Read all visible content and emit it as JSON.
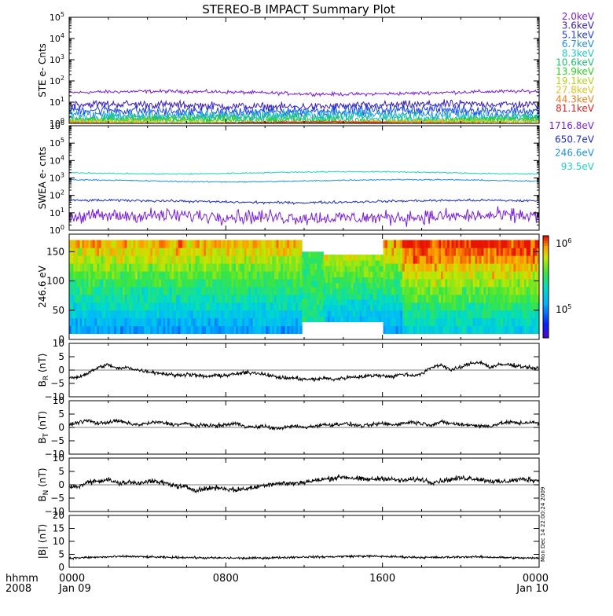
{
  "title": "STEREO-B IMPACT Summary Plot",
  "corner_label": {
    "line1": "hhmm",
    "line2": "2008"
  },
  "time_axis": {
    "ticks": [
      {
        "hours": 0,
        "hhmm": "0000",
        "date": "Jan 09"
      },
      {
        "hours": 8,
        "hhmm": "0800",
        "date": ""
      },
      {
        "hours": 16,
        "hhmm": "1600",
        "date": ""
      },
      {
        "hours": 24,
        "hhmm": "0000",
        "date": "Jan 10"
      }
    ]
  },
  "side_stamp": "Mon Dec 14 22:00:24 2009",
  "panel_ids": [
    "ste",
    "swea",
    "pad",
    "br",
    "bt",
    "bn",
    "bmag"
  ],
  "chart_data": [
    {
      "id": "ste",
      "type": "line",
      "scale": "log",
      "ylabel": "STE e- Cnts",
      "ylim": [
        1,
        100000
      ],
      "y_ticks": [
        {
          "value": 1,
          "base": "10",
          "exp": "0"
        },
        {
          "value": 10,
          "base": "10",
          "exp": "1"
        },
        {
          "value": 100,
          "base": "10",
          "exp": "2"
        },
        {
          "value": 1000,
          "base": "10",
          "exp": "3"
        },
        {
          "value": 10000,
          "base": "10",
          "exp": "4"
        },
        {
          "value": 100000,
          "base": "10",
          "exp": "5"
        }
      ],
      "series": [
        {
          "name": "2.0keV",
          "color": "#7b1fd8",
          "level": 28,
          "noise": 0.07
        },
        {
          "name": "3.6keV",
          "color": "#3a1fb0",
          "level": 7,
          "noise": 0.16
        },
        {
          "name": "5.1keV",
          "color": "#1f3fe0",
          "level": 4,
          "noise": 0.2
        },
        {
          "name": "6.7keV",
          "color": "#1f8fe0",
          "level": 2.6,
          "noise": 0.22
        },
        {
          "name": "8.3keV",
          "color": "#20c8c8",
          "level": 2.0,
          "noise": 0.22
        },
        {
          "name": "10.6keV",
          "color": "#20c070",
          "level": 1.6,
          "noise": 0.2
        },
        {
          "name": "13.9keV",
          "color": "#30d020",
          "level": 1.3,
          "noise": 0.15
        },
        {
          "name": "19.1keV",
          "color": "#b8d020",
          "level": 1.15,
          "noise": 0.1
        },
        {
          "name": "27.8keV",
          "color": "#e8c020",
          "level": 1.08,
          "noise": 0.08
        },
        {
          "name": "44.3keV",
          "color": "#f08020",
          "level": 1.04,
          "noise": 0.05
        },
        {
          "name": "81.1keV",
          "color": "#e02020",
          "level": 1.02,
          "noise": 0.03
        }
      ]
    },
    {
      "id": "swea",
      "type": "line",
      "scale": "log",
      "ylabel": "SWEA e- cnts",
      "ylim": [
        1,
        1000000
      ],
      "y_ticks": [
        {
          "value": 1,
          "base": "10",
          "exp": "0"
        },
        {
          "value": 10,
          "base": "10",
          "exp": "1"
        },
        {
          "value": 100,
          "base": "10",
          "exp": "2"
        },
        {
          "value": 1000,
          "base": "10",
          "exp": "3"
        },
        {
          "value": 10000,
          "base": "10",
          "exp": "4"
        },
        {
          "value": 100000,
          "base": "10",
          "exp": "5"
        },
        {
          "value": 1000000,
          "base": "10",
          "exp": "6"
        }
      ],
      "series": [
        {
          "name": "1716.8eV",
          "color": "#7b1fd8",
          "level": 6,
          "noise": 0.35
        },
        {
          "name": "650.7eV",
          "color": "#1f2fb8",
          "level": 45,
          "noise": 0.06
        },
        {
          "name": "246.6eV",
          "color": "#2090e0",
          "level": 700,
          "noise": 0.03
        },
        {
          "name": "93.5eV",
          "color": "#20d0c8",
          "level": 2000,
          "noise": 0.03
        }
      ]
    },
    {
      "id": "pad",
      "type": "heatmap",
      "ylabel": "246.6 eV",
      "ylim": [
        0,
        180
      ],
      "y_ticks": [
        {
          "value": 0,
          "label": "0"
        },
        {
          "value": 50,
          "label": "50"
        },
        {
          "value": 100,
          "label": "100"
        },
        {
          "value": 150,
          "label": "150"
        }
      ],
      "colorbar": {
        "ticks": [
          {
            "value": 1000000,
            "base": "10",
            "exp": "6"
          },
          {
            "value": 100000,
            "base": "10",
            "exp": "5"
          }
        ]
      },
      "gaps": [
        [
          11.9,
          13.0
        ]
      ],
      "reduced": [
        [
          11.9,
          16.0
        ]
      ]
    },
    {
      "id": "br",
      "type": "line",
      "ylabel": "B",
      "ylabel_sub": "R",
      "ylabel_unit": "(nT)",
      "ylim": [
        -10,
        10
      ],
      "y_ticks": [
        {
          "value": -10,
          "label": "−10"
        },
        {
          "value": -5,
          "label": "−5"
        },
        {
          "value": 0,
          "label": "0"
        },
        {
          "value": 5,
          "label": "5"
        },
        {
          "value": 10,
          "label": "10"
        }
      ],
      "x": [
        0,
        0.5,
        1,
        1.5,
        2,
        2.5,
        3,
        3.5,
        4,
        4.5,
        5,
        5.5,
        6,
        6.5,
        7,
        7.5,
        8,
        8.5,
        9,
        9.5,
        10,
        10.5,
        11,
        11.5,
        12,
        12.5,
        13,
        13.5,
        14,
        14.5,
        15,
        15.5,
        16,
        16.5,
        17,
        17.5,
        18,
        18.5,
        19,
        19.5,
        20,
        20.5,
        21,
        21.5,
        22,
        22.5,
        23,
        23.5,
        24
      ],
      "values": [
        -3,
        -2.5,
        -1,
        1,
        2,
        0.5,
        1,
        0,
        -0.5,
        -1,
        -1.5,
        -2,
        -1.5,
        -2,
        -2.5,
        -2,
        -2,
        -1.5,
        -1,
        -1,
        -1.5,
        -2.5,
        -3,
        -3,
        -3.5,
        -3.5,
        -3,
        -3.5,
        -3,
        -2.5,
        -2.5,
        -2,
        -2,
        -2.5,
        -1.5,
        -2,
        -1.5,
        1,
        2,
        0,
        1,
        2.5,
        3,
        1,
        2,
        2,
        1.5,
        1,
        0.5
      ],
      "noise": 0.6
    },
    {
      "id": "bt",
      "type": "line",
      "ylabel": "B",
      "ylabel_sub": "T",
      "ylabel_unit": "(nT)",
      "ylim": [
        -10,
        10
      ],
      "y_ticks": [
        {
          "value": -10,
          "label": "−10"
        },
        {
          "value": -5,
          "label": "−5"
        },
        {
          "value": 0,
          "label": "0"
        },
        {
          "value": 5,
          "label": "5"
        },
        {
          "value": 10,
          "label": "10"
        }
      ],
      "x": [
        0,
        0.5,
        1,
        1.5,
        2,
        2.5,
        3,
        3.5,
        4,
        4.5,
        5,
        5.5,
        6,
        6.5,
        7,
        7.5,
        8,
        8.5,
        9,
        9.5,
        10,
        10.5,
        11,
        11.5,
        12,
        12.5,
        13,
        13.5,
        14,
        14.5,
        15,
        15.5,
        16,
        16.5,
        17,
        17.5,
        18,
        18.5,
        19,
        19.5,
        20,
        20.5,
        21,
        21.5,
        22,
        22.5,
        23,
        23.5,
        24
      ],
      "values": [
        1,
        2,
        2.5,
        1.5,
        2,
        2.5,
        1.5,
        1,
        1.5,
        2,
        1.5,
        1,
        1.5,
        0.5,
        1,
        0.5,
        1,
        1.5,
        0.5,
        0,
        0.5,
        -0.5,
        0,
        0.5,
        0,
        0.5,
        1,
        1,
        1.5,
        1,
        0.5,
        1,
        1.5,
        1,
        1.5,
        2,
        1.5,
        1,
        2,
        1.5,
        1,
        1,
        0.5,
        0.5,
        1.5,
        2,
        1.5,
        2,
        1.5
      ],
      "noise": 0.6
    },
    {
      "id": "bn",
      "type": "line",
      "ylabel": "B",
      "ylabel_sub": "N",
      "ylabel_unit": "(nT)",
      "ylim": [
        -10,
        10
      ],
      "y_ticks": [
        {
          "value": -10,
          "label": "−10"
        },
        {
          "value": -5,
          "label": "−5"
        },
        {
          "value": 0,
          "label": "0"
        },
        {
          "value": 5,
          "label": "5"
        },
        {
          "value": 10,
          "label": "10"
        }
      ],
      "x": [
        0,
        0.5,
        1,
        1.5,
        2,
        2.5,
        3,
        3.5,
        4,
        4.5,
        5,
        5.5,
        6,
        6.5,
        7,
        7.5,
        8,
        8.5,
        9,
        9.5,
        10,
        10.5,
        11,
        11.5,
        12,
        12.5,
        13,
        13.5,
        14,
        14.5,
        15,
        15.5,
        16,
        16.5,
        17,
        17.5,
        18,
        18.5,
        19,
        19.5,
        20,
        20.5,
        21,
        21.5,
        22,
        22.5,
        23,
        23.5,
        24
      ],
      "values": [
        -1,
        -0.5,
        1,
        1.5,
        2,
        0.5,
        1,
        0.5,
        1.5,
        1,
        0.5,
        -0.5,
        -1,
        -2,
        -1.5,
        -1,
        -1.5,
        -2,
        -1.5,
        -1,
        0,
        0.5,
        0.5,
        0.5,
        1,
        1.5,
        2,
        2.5,
        3,
        2.5,
        2,
        2,
        2.5,
        2,
        1.5,
        2,
        2,
        1,
        1.5,
        2,
        2.5,
        2.5,
        2,
        1.5,
        1,
        1.5,
        2,
        2,
        1.5
      ],
      "noise": 0.8
    },
    {
      "id": "bmag",
      "type": "line",
      "ylabel": "|B| (nT)",
      "ylim": [
        0,
        20
      ],
      "y_ticks": [
        {
          "value": 0,
          "label": "0"
        },
        {
          "value": 5,
          "label": "5"
        },
        {
          "value": 10,
          "label": "10"
        },
        {
          "value": 15,
          "label": "15"
        },
        {
          "value": 20,
          "label": "20"
        }
      ],
      "x": [
        0,
        1,
        2,
        3,
        4,
        5,
        6,
        7,
        8,
        9,
        10,
        11,
        12,
        13,
        14,
        15,
        16,
        17,
        18,
        19,
        20,
        21,
        22,
        23,
        24
      ],
      "values": [
        3.5,
        3.8,
        4,
        4.2,
        4,
        3.8,
        3.8,
        3.6,
        3.6,
        3.5,
        3.6,
        3.8,
        4,
        4,
        4.2,
        4.3,
        4.2,
        4,
        3.8,
        3.8,
        4,
        4,
        3.8,
        3.6,
        3.5
      ],
      "noise": 0.35
    }
  ]
}
